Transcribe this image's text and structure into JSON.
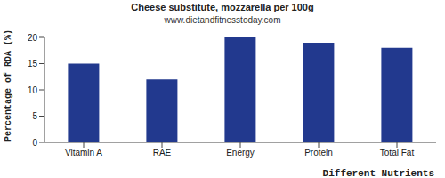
{
  "chart_data": {
    "type": "bar",
    "title": "Cheese substitute, mozzarella per 100g",
    "subtitle": "www.dietandfitnesstoday.com",
    "x_label": "Different Nutrients",
    "y_label": "Percentage of RDA (%)",
    "categories": [
      "Vitamin A",
      "RAE",
      "Energy",
      "Protein",
      "Total Fat"
    ],
    "values": [
      15,
      12,
      20,
      19,
      18
    ],
    "color": "#22398e",
    "ylim": [
      0,
      20
    ],
    "yticks": [
      0,
      5,
      10,
      15,
      20
    ],
    "grid": false
  }
}
